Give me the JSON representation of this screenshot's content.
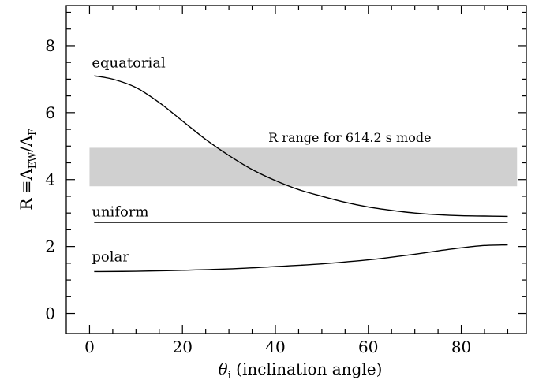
{
  "chart_data": {
    "type": "line",
    "xlabel_symbol": "θ",
    "xlabel_subscript": "i",
    "xlabel_text": "(inclination angle)",
    "ylabel_prefix": "R ≡A",
    "ylabel_sub1": "EW",
    "ylabel_mid": "/A",
    "ylabel_sub2": "F",
    "xlim": [
      -5,
      94
    ],
    "ylim": [
      -0.6,
      9.2
    ],
    "xticks": [
      0,
      20,
      40,
      60,
      80
    ],
    "yticks": [
      0,
      2,
      4,
      6,
      8
    ],
    "x_minor_step": 5,
    "y_minor_step": 0.5,
    "grid": false,
    "band": {
      "label": "R range for 614.2 s mode",
      "x_range": [
        0,
        92
      ],
      "y_range": [
        3.8,
        4.95
      ],
      "color": "#d0d0d0"
    },
    "series": [
      {
        "name": "equatorial",
        "x": [
          1,
          5,
          10,
          15,
          20,
          25,
          30,
          35,
          40,
          45,
          50,
          55,
          60,
          65,
          70,
          75,
          80,
          85,
          90
        ],
        "y": [
          7.1,
          7.0,
          6.75,
          6.3,
          5.75,
          5.2,
          4.72,
          4.3,
          3.97,
          3.7,
          3.5,
          3.32,
          3.18,
          3.08,
          3.0,
          2.95,
          2.92,
          2.91,
          2.9
        ]
      },
      {
        "name": "uniform",
        "x": [
          1,
          90
        ],
        "y": [
          2.72,
          2.72
        ]
      },
      {
        "name": "polar",
        "x": [
          1,
          10,
          20,
          30,
          40,
          50,
          60,
          65,
          70,
          75,
          80,
          85,
          90
        ],
        "y": [
          1.25,
          1.26,
          1.29,
          1.33,
          1.4,
          1.48,
          1.6,
          1.68,
          1.77,
          1.87,
          1.96,
          2.03,
          2.05
        ]
      }
    ],
    "annotations": [
      {
        "text": "equatorial",
        "x": 0.5,
        "y": 7.35
      },
      {
        "text": "uniform",
        "x": 0.5,
        "y": 2.9
      },
      {
        "text": "polar",
        "x": 0.5,
        "y": 1.55
      }
    ],
    "colors": {
      "line": "#000000",
      "band": "#d0d0d0"
    }
  }
}
